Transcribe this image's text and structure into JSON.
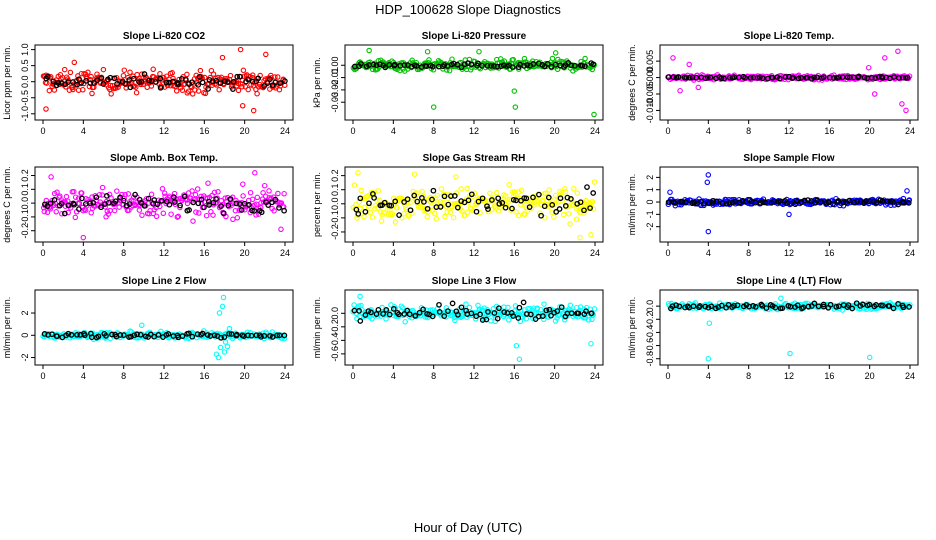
{
  "page_title": "HDP_100628  Slope Diagnostics",
  "x_axis_label": "Hour of Day (UTC)",
  "chart_data": [
    {
      "type": "scatter",
      "title": "Slope Li-820 CO2",
      "ylabel": "Licor ppm per min.",
      "color": "#ff0000",
      "xlim": [
        0,
        24
      ],
      "xticks": [
        "0",
        "4",
        "8",
        "12",
        "16",
        "20",
        "24"
      ],
      "ylim": [
        -1.1,
        1.05
      ],
      "yticks": [
        {
          "v": -1,
          "label": "-1.0"
        },
        {
          "v": -0.5,
          "label": "-0.5"
        },
        {
          "v": 0,
          "label": "0.0"
        },
        {
          "v": 0.5,
          "label": "0.5"
        },
        {
          "v": 1,
          "label": "1.0"
        }
      ],
      "spread": 0.3,
      "black_spread": 0.15,
      "outliers": [
        [
          19.6,
          1.0
        ],
        [
          20.9,
          -0.9
        ],
        [
          19.8,
          -0.75
        ],
        [
          0.3,
          -0.85
        ],
        [
          22.1,
          0.85
        ],
        [
          3.1,
          0.6
        ],
        [
          17.8,
          0.75
        ]
      ]
    },
    {
      "type": "scatter",
      "title": "Slope Li-820 Pressure",
      "ylabel": "kPa per min.",
      "color": "#00c000",
      "xlim": [
        0,
        24
      ],
      "xticks": [
        "0",
        "4",
        "8",
        "12",
        "16",
        "20",
        "24"
      ],
      "ylim": [
        -0.042,
        0.014
      ],
      "yticks": [
        {
          "v": -0.03,
          "label": "-0.03"
        },
        {
          "v": -0.02,
          "label": "-0.02"
        },
        {
          "v": -0.01,
          "label": "-0.01"
        },
        {
          "v": 0,
          "label": "0.00"
        }
      ],
      "spread": 0.004,
      "black_spread": 0.0015,
      "outliers": [
        [
          8.0,
          -0.034
        ],
        [
          16.1,
          -0.034
        ],
        [
          23.9,
          -0.04
        ],
        [
          1.6,
          0.012
        ],
        [
          7.4,
          0.011
        ],
        [
          12.5,
          0.011
        ],
        [
          20.1,
          0.01
        ],
        [
          16.0,
          -0.021
        ]
      ]
    },
    {
      "type": "scatter",
      "title": "Slope Li-820 Temp.",
      "ylabel": "degrees C per min.",
      "color": "#ff00ff",
      "xlim": [
        0,
        24
      ],
      "xticks": [
        "0",
        "4",
        "8",
        "12",
        "16",
        "20",
        "24"
      ],
      "ylim": [
        -0.012,
        0.009
      ],
      "yticks": [
        {
          "v": -0.01,
          "label": "-0.010"
        },
        {
          "v": -0.005,
          "label": "-0.005"
        },
        {
          "v": 0,
          "label": "0.000"
        },
        {
          "v": 0.005,
          "label": "0.005"
        }
      ],
      "spread": 0.0006,
      "black_spread": 0.0003,
      "outliers": [
        [
          0.5,
          0.006
        ],
        [
          1.2,
          -0.004
        ],
        [
          2.1,
          0.004
        ],
        [
          22.8,
          0.008
        ],
        [
          23.2,
          -0.008
        ],
        [
          21.5,
          0.006
        ],
        [
          20.5,
          -0.005
        ],
        [
          23.6,
          -0.01
        ],
        [
          19.9,
          0.003
        ],
        [
          3.0,
          -0.003
        ]
      ]
    },
    {
      "type": "scatter",
      "title": "Slope Amb. Box Temp.",
      "ylabel": "degrees C per min.",
      "color": "#ff00ff",
      "xlim": [
        0,
        24
      ],
      "xticks": [
        "0",
        "4",
        "8",
        "12",
        "16",
        "20",
        "24"
      ],
      "ylim": [
        -0.26,
        0.24
      ],
      "yticks": [
        {
          "v": -0.2,
          "label": "-0.2"
        },
        {
          "v": -0.1,
          "label": "-0.1"
        },
        {
          "v": 0,
          "label": "0.0"
        },
        {
          "v": 0.1,
          "label": "0.1"
        },
        {
          "v": 0.2,
          "label": "0.2"
        }
      ],
      "spread": 0.09,
      "black_spread": 0.05,
      "outliers": [
        [
          4.0,
          -0.25
        ],
        [
          21.0,
          0.22
        ],
        [
          23.6,
          -0.19
        ],
        [
          0.8,
          0.19
        ]
      ]
    },
    {
      "type": "scatter",
      "title": "Slope Gas Stream RH",
      "ylabel": "percent per min.",
      "color": "#ffff00",
      "xlim": [
        0,
        24
      ],
      "xticks": [
        "0",
        "4",
        "8",
        "12",
        "16",
        "20",
        "24"
      ],
      "ylim": [
        -0.25,
        0.24
      ],
      "yticks": [
        {
          "v": -0.2,
          "label": "-0.2"
        },
        {
          "v": -0.1,
          "label": "-0.1"
        },
        {
          "v": 0,
          "label": "0.0"
        },
        {
          "v": 0.1,
          "label": "0.1"
        },
        {
          "v": 0.2,
          "label": "0.2"
        }
      ],
      "spread": 0.1,
      "black_spread": 0.07,
      "outliers": [
        [
          22.5,
          -0.24
        ],
        [
          0.5,
          0.22
        ],
        [
          10.2,
          0.19
        ],
        [
          23.6,
          -0.22
        ],
        [
          6.1,
          0.21
        ]
      ]
    },
    {
      "type": "scatter",
      "title": "Slope Sample Flow",
      "ylabel": "ml/min per min.",
      "color": "#0000ff",
      "xlim": [
        0,
        24
      ],
      "xticks": [
        "0",
        "4",
        "8",
        "12",
        "16",
        "20",
        "24"
      ],
      "ylim": [
        -3.0,
        2.6
      ],
      "yticks": [
        {
          "v": -2,
          "label": "-2"
        },
        {
          "v": -1,
          "label": "-1"
        },
        {
          "v": 0,
          "label": "0"
        },
        {
          "v": 1,
          "label": "1"
        },
        {
          "v": 2,
          "label": "2"
        }
      ],
      "spread": 0.22,
      "black_spread": 0.15,
      "outliers": [
        [
          4.0,
          2.2
        ],
        [
          3.9,
          1.6
        ],
        [
          4.0,
          -2.4
        ],
        [
          12.0,
          -1.0
        ],
        [
          0.2,
          0.8
        ],
        [
          23.7,
          0.9
        ]
      ]
    },
    {
      "type": "scatter",
      "title": "Slope Line 2 Flow",
      "ylabel": "ml/min per min.",
      "color": "#00ffff",
      "xlim": [
        0,
        24
      ],
      "xticks": [
        "0",
        "4",
        "8",
        "12",
        "16",
        "20",
        "24"
      ],
      "ylim": [
        -2.4,
        3.8
      ],
      "yticks": [
        {
          "v": -2,
          "label": "-2"
        },
        {
          "v": 0,
          "label": "0"
        },
        {
          "v": 2,
          "label": "2"
        }
      ],
      "spread": 0.25,
      "black_spread": 0.2,
      "outliers": [
        [
          17.5,
          2.0
        ],
        [
          17.9,
          3.4
        ],
        [
          17.8,
          2.6
        ],
        [
          18.1,
          -0.6
        ],
        [
          17.6,
          -1.1
        ],
        [
          17.2,
          -1.7
        ],
        [
          18.3,
          -1.0
        ],
        [
          18.0,
          -1.5
        ],
        [
          17.4,
          -2.0
        ],
        [
          18.5,
          0.6
        ],
        [
          9.8,
          0.9
        ],
        [
          18.8,
          -0.3
        ]
      ]
    },
    {
      "type": "scatter",
      "title": "Slope Line 3 Flow",
      "ylabel": "ml/min per min.",
      "color": "#00ffff",
      "xlim": [
        0,
        24
      ],
      "xticks": [
        "0",
        "4",
        "8",
        "12",
        "16",
        "20",
        "24"
      ],
      "ylim": [
        -0.72,
        0.3
      ],
      "yticks": [
        {
          "v": -0.6,
          "label": "-0.6"
        },
        {
          "v": -0.4,
          "label": "-0.4"
        },
        {
          "v": -0.2,
          "label": "-0.2"
        },
        {
          "v": 0,
          "label": "0.0"
        }
      ],
      "spread": 0.1,
      "black_spread": 0.09,
      "outliers": [
        [
          16.5,
          -0.68
        ],
        [
          16.2,
          -0.48
        ],
        [
          23.6,
          -0.45
        ],
        [
          0.7,
          0.25
        ]
      ]
    },
    {
      "type": "scatter",
      "title": "Slope Line 4 (LT) Flow",
      "ylabel": "ml/min per min.",
      "color": "#00ffff",
      "xlim": [
        0,
        24
      ],
      "xticks": [
        "0",
        "4",
        "8",
        "12",
        "16",
        "20",
        "24"
      ],
      "ylim": [
        -0.85,
        0.2
      ],
      "yticks": [
        {
          "v": -0.8,
          "label": "-0.8"
        },
        {
          "v": -0.6,
          "label": "-0.6"
        },
        {
          "v": -0.4,
          "label": "-0.4"
        },
        {
          "v": -0.2,
          "label": "-0.2"
        },
        {
          "v": 0,
          "label": "0.0"
        }
      ],
      "spread": 0.04,
      "black_spread": 0.035,
      "outliers": [
        [
          4.0,
          -0.8
        ],
        [
          12.1,
          -0.72
        ],
        [
          20.0,
          -0.78
        ],
        [
          4.1,
          -0.26
        ],
        [
          11.2,
          0.12
        ]
      ]
    }
  ]
}
